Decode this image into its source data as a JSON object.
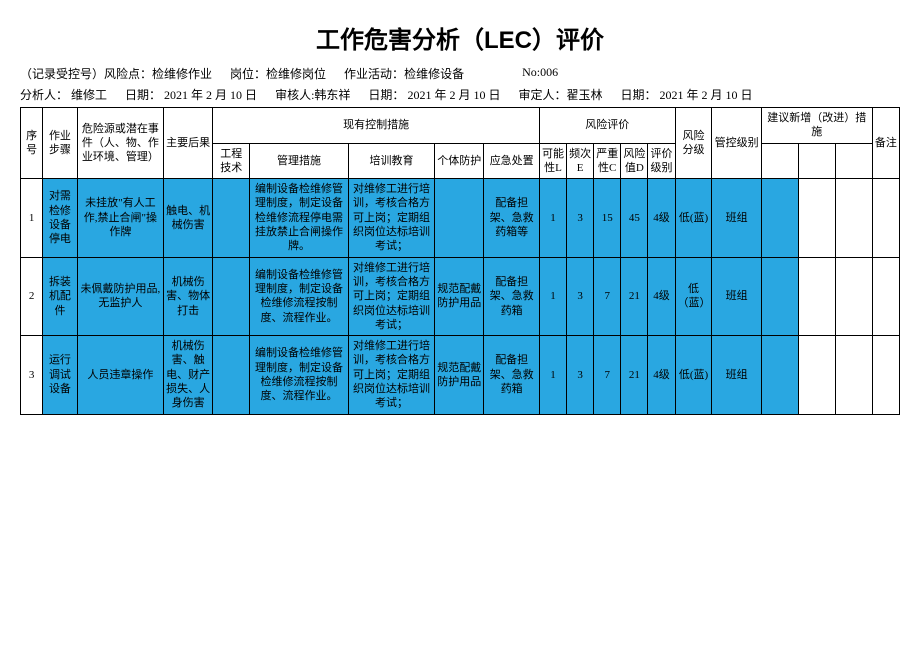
{
  "title": "工作危害分析（LEC）评价",
  "meta1": {
    "record": "（记录受控号）风险点：检维修作业",
    "post_label": "岗位：",
    "post": "检维修岗位",
    "activity_label": "作业活动：",
    "activity": "检维修设备",
    "no_label": "No:",
    "no": "006"
  },
  "meta2": {
    "analyst_label": "分析人：",
    "analyst": "维修工",
    "date1_label": "日期：",
    "date1": "2021 年 2 月 10 日",
    "reviewer_label": "审核人:",
    "reviewer": "韩东祥",
    "date2_label": "日期：",
    "date2": "2021 年 2 月 10 日",
    "approver_label": "审定人：",
    "approver": "翟玉林",
    "date3_label": "日期：",
    "date3": "2021 年 2 月 10 日"
  },
  "headers": {
    "seq": "序号",
    "step": "作业步骤",
    "hazard": "危险源或潜在事件（人、物、作业环境、管理）",
    "conseq": "主要后果",
    "existing": "现有控制措施",
    "eng": "工程技术",
    "mgmt": "管理措施",
    "train": "培训教育",
    "ppe": "个体防护",
    "emerg": "应急处置",
    "riskeval": "风险评价",
    "L": "可能性L",
    "E": "频次E",
    "C": "严重性C",
    "D": "风险值D",
    "evallv": "评价级别",
    "risklv": "风险分级",
    "ctrllv": "管控级别",
    "suggest": "建议新增（改进）措施",
    "note": "备注"
  },
  "rows": [
    {
      "seq": "1",
      "step": "对需检修设备停电",
      "hazard": "未挂放\"有人工作,禁止合闸\"操作牌",
      "conseq": "触电、机械伤害",
      "eng": "",
      "mgmt": "编制设备检维修管理制度，制定设备检维修流程停电需挂放禁止合闸操作牌。",
      "train": "对维修工进行培训，考核合格方可上岗；定期组织岗位达标培训考试；",
      "ppe": "",
      "emerg": "配备担架、急救药箱等",
      "L": "1",
      "E": "3",
      "C": "15",
      "D": "45",
      "evallv": "4级",
      "risklv": "低(蓝)",
      "ctrl": "班组"
    },
    {
      "seq": "2",
      "step": "拆装机配件",
      "hazard": "未佩戴防护用品,无监护人",
      "conseq": "机械伤害、物体打击",
      "eng": "",
      "mgmt": "编制设备检维修管理制度，制定设备检维修流程按制度、流程作业。",
      "train": "对维修工进行培训，考核合格方可上岗；定期组织岗位达标培训考试；",
      "ppe": "规范配戴防护用品",
      "emerg": "配备担架、急救药箱",
      "L": "1",
      "E": "3",
      "C": "7",
      "D": "21",
      "evallv": "4级",
      "risklv": "低（蓝）",
      "ctrl": "班组"
    },
    {
      "seq": "3",
      "step": "运行调试设备",
      "hazard": "人员违章操作",
      "conseq": "机械伤害、触电、财产损失、人身伤害",
      "eng": "",
      "mgmt": "编制设备检维修管理制度，制定设备检维修流程按制度、流程作业。",
      "train": "对维修工进行培训，考核合格方可上岗；定期组织岗位达标培训考试；",
      "ppe": "规范配戴防护用品",
      "emerg": "配备担架、急救药箱",
      "L": "1",
      "E": "3",
      "C": "7",
      "D": "21",
      "evallv": "4级",
      "risklv": "低(蓝)",
      "ctrl": "班组"
    }
  ],
  "colors": {
    "highlight": "#29a7e1",
    "background": "#ffffff",
    "border": "#000000"
  }
}
